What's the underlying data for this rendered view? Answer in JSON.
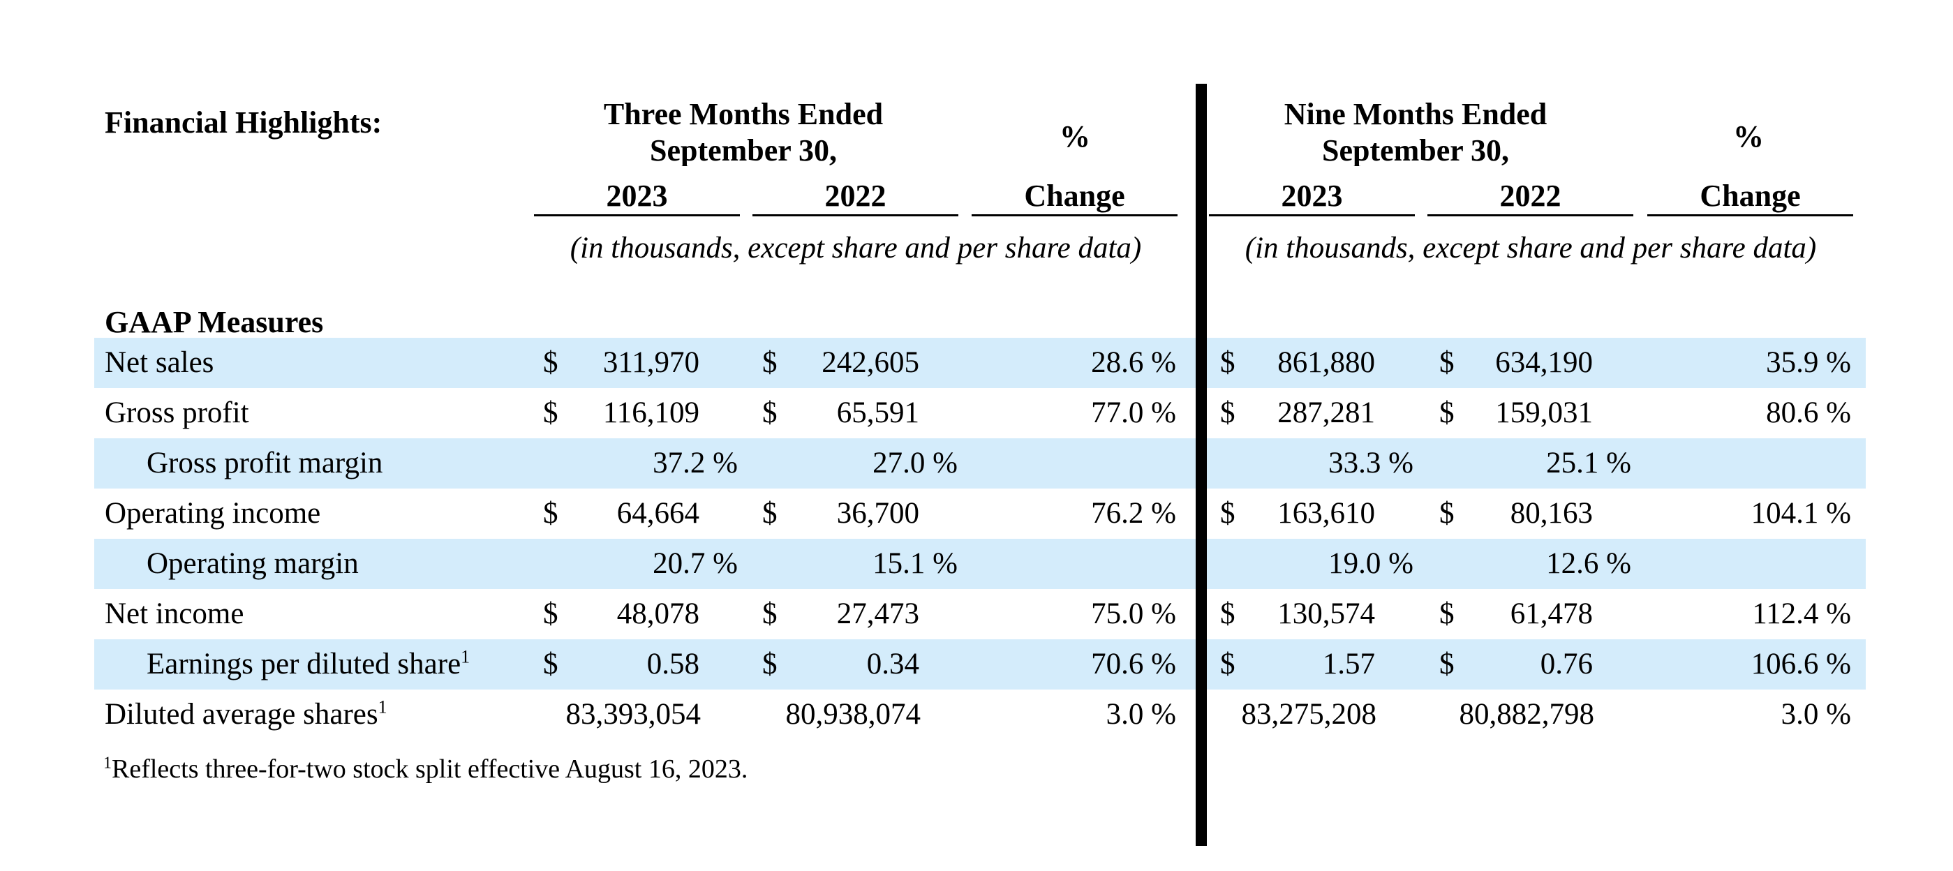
{
  "header": {
    "title": "Financial Highlights:",
    "three_months": {
      "line1": "Three Months Ended",
      "line2": "September 30,"
    },
    "nine_months": {
      "line1": "Nine Months Ended",
      "line2": "September 30,"
    },
    "pct_symbol": "%",
    "col_2023": "2023",
    "col_2022": "2022",
    "col_change": "Change",
    "subnote": "(in thousands, except share and per share data)"
  },
  "section_title": "GAAP Measures",
  "rows": [
    {
      "label": "Net sales",
      "sup": "",
      "cur1": "$",
      "q23": "311,970",
      "cur2": "$",
      "q22": "242,605",
      "qchg": "28.6 %",
      "cur3": "$",
      "n23": "861,880",
      "cur4": "$",
      "n22": "634,190",
      "nchg": "35.9 %"
    },
    {
      "label": "Gross profit",
      "sup": "",
      "cur1": "$",
      "q23": "116,109",
      "cur2": "$",
      "q22": "65,591",
      "qchg": "77.0 %",
      "cur3": "$",
      "n23": "287,281",
      "cur4": "$",
      "n22": "159,031",
      "nchg": "80.6 %"
    },
    {
      "label": "Gross profit margin",
      "sup": "",
      "cur1": "",
      "q23": "37.2 %",
      "cur2": "",
      "q22": "27.0 %",
      "qchg": "",
      "cur3": "",
      "n23": "33.3 %",
      "cur4": "",
      "n22": "25.1 %",
      "nchg": ""
    },
    {
      "label": "Operating income",
      "sup": "",
      "cur1": "$",
      "q23": "64,664",
      "cur2": "$",
      "q22": "36,700",
      "qchg": "76.2 %",
      "cur3": "$",
      "n23": "163,610",
      "cur4": "$",
      "n22": "80,163",
      "nchg": "104.1 %"
    },
    {
      "label": "Operating margin",
      "sup": "",
      "cur1": "",
      "q23": "20.7 %",
      "cur2": "",
      "q22": "15.1 %",
      "qchg": "",
      "cur3": "",
      "n23": "19.0 %",
      "cur4": "",
      "n22": "12.6 %",
      "nchg": ""
    },
    {
      "label": "Net income",
      "sup": "",
      "cur1": "$",
      "q23": "48,078",
      "cur2": "$",
      "q22": "27,473",
      "qchg": "75.0 %",
      "cur3": "$",
      "n23": "130,574",
      "cur4": "$",
      "n22": "61,478",
      "nchg": "112.4 %"
    },
    {
      "label": "Earnings per diluted share",
      "sup": "1",
      "cur1": "$",
      "q23": "0.58",
      "cur2": "$",
      "q22": "0.34",
      "qchg": "70.6 %",
      "cur3": "$",
      "n23": "1.57",
      "cur4": "$",
      "n22": "0.76",
      "nchg": "106.6 %"
    },
    {
      "label": "Diluted average shares",
      "sup": "1",
      "cur1": "",
      "q23": "83,393,054",
      "cur2": "",
      "q22": "80,938,074",
      "qchg": "3.0 %",
      "cur3": "",
      "n23": "83,275,208",
      "cur4": "",
      "n22": "80,882,798",
      "nchg": "3.0 %"
    }
  ],
  "footnote": {
    "marker": "1",
    "text": "Reflects three-for-two stock split effective August 16, 2023."
  },
  "colors": {
    "band": "#d4ecfb",
    "text": "#000000"
  }
}
